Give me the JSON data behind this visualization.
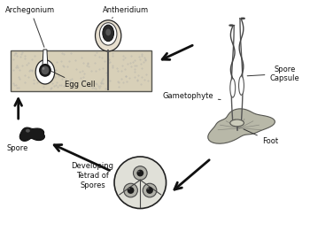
{
  "bg_color": "#ffffff",
  "tissue_color": "#d8d0b8",
  "tissue_border": "#555550",
  "dark": "#222222",
  "mid_gray": "#888888",
  "light_gray": "#cccccc",
  "white": "#ffffff",
  "black": "#111111",
  "labels": {
    "archegonium": "Archegonium",
    "antheridium": "Antheridium",
    "egg_cell": "Egg Cell",
    "spore": "Spore",
    "spore_capsule": "Spore\nCapsule",
    "gametophyte": "Gametophyte",
    "developing_tetrad": "Developing\nTetrad of\nSpores",
    "foot": "Foot"
  },
  "figsize": [
    3.5,
    2.7
  ],
  "dpi": 100
}
